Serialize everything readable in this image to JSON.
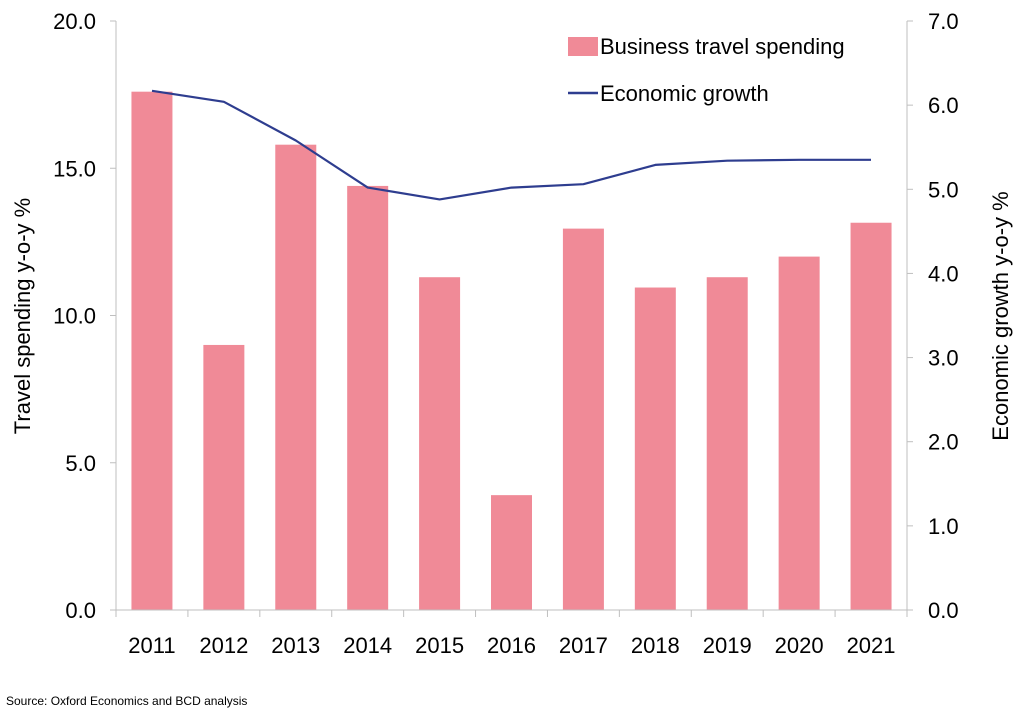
{
  "chart_data": {
    "type": "bar",
    "categories": [
      "2011",
      "2012",
      "2013",
      "2014",
      "2015",
      "2016",
      "2017",
      "2018",
      "2019",
      "2020",
      "2021"
    ],
    "series": [
      {
        "name": "Business travel spending",
        "type": "bar",
        "axis": "left",
        "color": "#f08a97",
        "values": [
          17.6,
          9.0,
          15.8,
          14.4,
          11.3,
          3.9,
          12.95,
          10.95,
          11.3,
          12.0,
          13.15
        ]
      },
      {
        "name": "Economic growth",
        "type": "line",
        "axis": "right",
        "color": "#2e3d8f",
        "values": [
          6.17,
          6.04,
          5.58,
          5.02,
          4.88,
          5.02,
          5.06,
          5.29,
          5.34,
          5.35,
          5.35
        ]
      }
    ],
    "ylabel": "Travel spending y-o-y %",
    "y2label": "Economic growth y-o-y %",
    "ylim": [
      0,
      20
    ],
    "y2lim": [
      0,
      7
    ],
    "yticks": [
      "0.0",
      "5.0",
      "10.0",
      "15.0",
      "20.0"
    ],
    "y2ticks": [
      "0.0",
      "1.0",
      "2.0",
      "3.0",
      "4.0",
      "5.0",
      "6.0",
      "7.0"
    ],
    "grid": false,
    "legend_position": "top-right"
  },
  "source": "Source: Oxford Economics and BCD analysis"
}
